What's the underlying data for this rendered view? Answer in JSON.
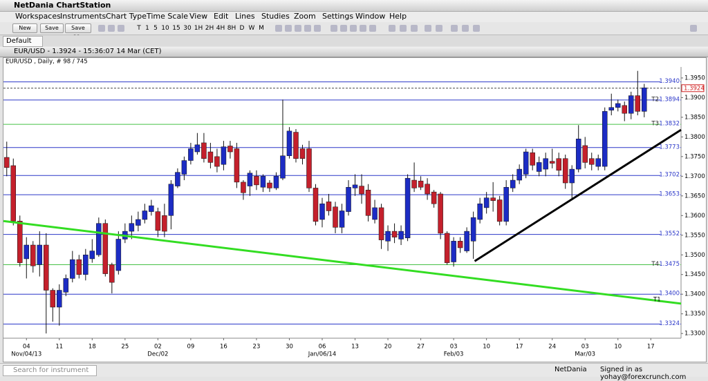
{
  "window": {
    "title": "NetDania ChartStation",
    "menu": [
      "Workspaces",
      "Instruments",
      "Chart Type",
      "Time Scale",
      "View",
      "Edit",
      "Lines",
      "Studies",
      "Zoom",
      "Settings",
      "Window",
      "Help"
    ],
    "buttons": [
      "New",
      "Save",
      "Save as.."
    ],
    "timeframes": [
      "T",
      "1",
      "5",
      "10",
      "15",
      "30",
      "1H",
      "2H",
      "4H",
      "8H",
      "D",
      "W",
      "M"
    ],
    "tab": "Default",
    "chart_window_title": "EUR/USD - 1.3924 - 15:36:07 14 Mar (CET)",
    "status": {
      "search_placeholder": "Search for instrument",
      "brand": "NetDania",
      "signed_in": "Signed in as yohay@forexcrunch.com"
    }
  },
  "chart_data": {
    "type": "candlestick",
    "subtitle": "EUR/USD , Daily, # 98 / 745",
    "up_color": "#1c2cc4",
    "down_color": "#c4202c",
    "open": [
      1.3748,
      1.3727,
      1.3586,
      1.349,
      1.3525,
      1.3475,
      1.3525,
      1.341,
      1.3367,
      1.3405,
      1.344,
      1.3488,
      1.345,
      1.349,
      1.35,
      1.358,
      1.3475,
      1.346,
      1.354,
      1.356,
      1.3575,
      1.359,
      1.361,
      1.361,
      1.36,
      1.36,
      1.3675,
      1.3705,
      1.374,
      1.3762,
      1.3785,
      1.3762,
      1.375,
      1.373,
      1.3777,
      1.377,
      1.3685,
      1.3675,
      1.37,
      1.3672,
      1.3683,
      1.367,
      1.3695,
      1.3752,
      1.3812,
      1.377,
      1.377,
      1.367,
      1.359,
      1.3635,
      1.3622,
      1.357,
      1.361,
      1.367,
      1.3675,
      1.3665,
      1.359,
      1.362,
      1.3535,
      1.356,
      1.354,
      1.3543,
      1.369,
      1.3688,
      1.368,
      1.366,
      1.3655,
      1.3555,
      1.3482,
      1.3535,
      1.351,
      1.3535,
      1.359,
      1.362,
      1.3645,
      1.364,
      1.3585,
      1.367,
      1.369,
      1.3705,
      1.376,
      1.3712,
      1.3718,
      1.3738,
      1.3745,
      1.3745,
      1.3683,
      1.3718,
      1.3778,
      1.3745,
      1.3725,
      1.3725,
      1.3868,
      1.3875,
      1.388,
      1.386,
      1.3905,
      1.3865
    ],
    "high": [
      1.3788,
      1.3745,
      1.36,
      1.3545,
      1.3535,
      1.356,
      1.3555,
      1.3415,
      1.3425,
      1.345,
      1.351,
      1.35,
      1.3515,
      1.354,
      1.3595,
      1.359,
      1.348,
      1.356,
      1.358,
      1.36,
      1.361,
      1.363,
      1.364,
      1.362,
      1.363,
      1.369,
      1.372,
      1.375,
      1.3785,
      1.381,
      1.381,
      1.3785,
      1.377,
      1.379,
      1.379,
      1.3785,
      1.369,
      1.3715,
      1.3715,
      1.3705,
      1.369,
      1.371,
      1.3895,
      1.3825,
      1.382,
      1.378,
      1.379,
      1.368,
      1.3645,
      1.3655,
      1.3635,
      1.363,
      1.369,
      1.3705,
      1.3705,
      1.368,
      1.364,
      1.363,
      1.3575,
      1.358,
      1.3575,
      1.3705,
      1.3735,
      1.37,
      1.3695,
      1.3665,
      1.366,
      1.356,
      1.3545,
      1.3545,
      1.357,
      1.361,
      1.3645,
      1.366,
      1.3685,
      1.365,
      1.369,
      1.3705,
      1.373,
      1.377,
      1.377,
      1.375,
      1.376,
      1.377,
      1.376,
      1.3755,
      1.3728,
      1.383,
      1.38,
      1.376,
      1.3755,
      1.3875,
      1.391,
      1.3895,
      1.389,
      1.3915,
      1.3968,
      1.3935
    ],
    "low": [
      1.37,
      1.3575,
      1.347,
      1.344,
      1.3455,
      1.3445,
      1.33,
      1.333,
      1.332,
      1.3395,
      1.343,
      1.344,
      1.3435,
      1.348,
      1.3495,
      1.3445,
      1.3402,
      1.345,
      1.353,
      1.354,
      1.356,
      1.358,
      1.36,
      1.3545,
      1.3545,
      1.3565,
      1.367,
      1.369,
      1.373,
      1.3755,
      1.3735,
      1.372,
      1.371,
      1.3715,
      1.3745,
      1.367,
      1.364,
      1.365,
      1.3665,
      1.366,
      1.366,
      1.3665,
      1.369,
      1.3745,
      1.3735,
      1.373,
      1.366,
      1.3575,
      1.357,
      1.36,
      1.3555,
      1.3555,
      1.36,
      1.365,
      1.363,
      1.3585,
      1.358,
      1.3515,
      1.351,
      1.353,
      1.3525,
      1.3535,
      1.366,
      1.3665,
      1.364,
      1.362,
      1.354,
      1.3475,
      1.347,
      1.3505,
      1.3505,
      1.349,
      1.358,
      1.3605,
      1.361,
      1.3575,
      1.3575,
      1.366,
      1.368,
      1.3695,
      1.3715,
      1.37,
      1.37,
      1.372,
      1.37,
      1.3668,
      1.364,
      1.371,
      1.372,
      1.3715,
      1.3715,
      1.3715,
      1.3855,
      1.3865,
      1.384,
      1.3845,
      1.3855,
      1.385
    ],
    "close": [
      1.3722,
      1.3586,
      1.348,
      1.3525,
      1.3472,
      1.3525,
      1.341,
      1.3367,
      1.341,
      1.344,
      1.3488,
      1.345,
      1.35,
      1.351,
      1.358,
      1.3452,
      1.343,
      1.354,
      1.356,
      1.358,
      1.359,
      1.3612,
      1.3625,
      1.3562,
      1.356,
      1.368,
      1.371,
      1.374,
      1.377,
      1.378,
      1.3745,
      1.3735,
      1.3725,
      1.3775,
      1.3762,
      1.3685,
      1.3658,
      1.3708,
      1.3678,
      1.37,
      1.367,
      1.37,
      1.3752,
      1.3815,
      1.3745,
      1.3745,
      1.367,
      1.3585,
      1.363,
      1.3612,
      1.357,
      1.3612,
      1.3672,
      1.3678,
      1.3655,
      1.36,
      1.362,
      1.3538,
      1.356,
      1.3545,
      1.356,
      1.3695,
      1.367,
      1.3672,
      1.3655,
      1.363,
      1.3555,
      1.348,
      1.3535,
      1.3518,
      1.356,
      1.3595,
      1.363,
      1.3645,
      1.3638,
      1.3585,
      1.3672,
      1.369,
      1.3718,
      1.3762,
      1.3728,
      1.3735,
      1.3745,
      1.3733,
      1.3715,
      1.3683,
      1.3718,
      1.3795,
      1.3735,
      1.373,
      1.3745,
      1.3865,
      1.3875,
      1.3885,
      1.386,
      1.3905,
      1.3865,
      1.3925
    ],
    "xlim": [
      -0.5,
      102.6
    ],
    "xticks": [
      {
        "value": 3,
        "label": "04"
      },
      {
        "value": 8,
        "label": "11"
      },
      {
        "value": 13,
        "label": "18"
      },
      {
        "value": 18,
        "label": "25"
      },
      {
        "value": 23,
        "label": "02"
      },
      {
        "value": 28,
        "label": "09"
      },
      {
        "value": 33,
        "label": "16"
      },
      {
        "value": 38,
        "label": "23"
      },
      {
        "value": 43,
        "label": "30"
      },
      {
        "value": 48,
        "label": "06"
      },
      {
        "value": 53,
        "label": "13"
      },
      {
        "value": 58,
        "label": "20"
      },
      {
        "value": 63,
        "label": "27"
      },
      {
        "value": 68,
        "label": "03"
      },
      {
        "value": 73,
        "label": "10"
      },
      {
        "value": 78,
        "label": "17"
      },
      {
        "value": 83,
        "label": "24"
      },
      {
        "value": 88,
        "label": "03"
      },
      {
        "value": 93,
        "label": "10"
      },
      {
        "value": 98,
        "label": "17"
      }
    ],
    "period_labels": [
      {
        "value": 3,
        "label": "Nov/04/13"
      },
      {
        "value": 23,
        "label": "Dec/02"
      },
      {
        "value": 48,
        "label": "Jan/06/14"
      },
      {
        "value": 68,
        "label": "Feb/03"
      },
      {
        "value": 88,
        "label": "Mar/03"
      }
    ],
    "ylim": [
      1.3288,
      1.3978
    ],
    "yticks": [
      {
        "value": 1.33,
        "label": "1.3300"
      },
      {
        "value": 1.335,
        "label": "1.3350"
      },
      {
        "value": 1.34,
        "label": "1.3400"
      },
      {
        "value": 1.345,
        "label": "1.3450"
      },
      {
        "value": 1.35,
        "label": "1.3500"
      },
      {
        "value": 1.355,
        "label": "1.3550"
      },
      {
        "value": 1.36,
        "label": "1.3600"
      },
      {
        "value": 1.365,
        "label": "1.3650"
      },
      {
        "value": 1.37,
        "label": "1.3700"
      },
      {
        "value": 1.375,
        "label": "1.3750"
      },
      {
        "value": 1.38,
        "label": "1.3800"
      },
      {
        "value": 1.385,
        "label": "1.3850"
      },
      {
        "value": 1.39,
        "label": "1.3900"
      },
      {
        "value": 1.395,
        "label": "1.3950"
      }
    ],
    "levels": [
      {
        "value": 1.394,
        "label": "1.3940",
        "color": "#2a36c8"
      },
      {
        "value": 1.3894,
        "label": "1.3894",
        "tag": "T2",
        "color": "#2a36c8"
      },
      {
        "value": 1.3832,
        "label": "1.3832",
        "tag": "T3",
        "color": "#44c044"
      },
      {
        "value": 1.3773,
        "label": "1.3773",
        "color": "#2a36c8"
      },
      {
        "value": 1.3702,
        "label": "1.3702",
        "color": "#2a36c8"
      },
      {
        "value": 1.3653,
        "label": "1.3653",
        "color": "#2a36c8"
      },
      {
        "value": 1.3552,
        "label": "1.3552",
        "color": "#2a36c8"
      },
      {
        "value": 1.3475,
        "label": "1.3475",
        "tag": "T4",
        "color": "#44c044"
      },
      {
        "value": 1.34,
        "label": "1.3400",
        "color": "#2a36c8"
      },
      {
        "value": 1.3324,
        "label": "1.3324",
        "color": "#2a36c8"
      }
    ],
    "current_price": {
      "value": 1.3924,
      "label": "1.3924",
      "color": "#d02020"
    },
    "trendlines": [
      {
        "color": "#33dd22",
        "label": "T1",
        "points": [
          [
            -0.5,
            1.3586
          ],
          [
            102.6,
            1.3376
          ]
        ]
      },
      {
        "color": "#000000",
        "points": [
          [
            71.2,
            1.3484
          ],
          [
            102.6,
            1.3818
          ]
        ]
      }
    ]
  }
}
